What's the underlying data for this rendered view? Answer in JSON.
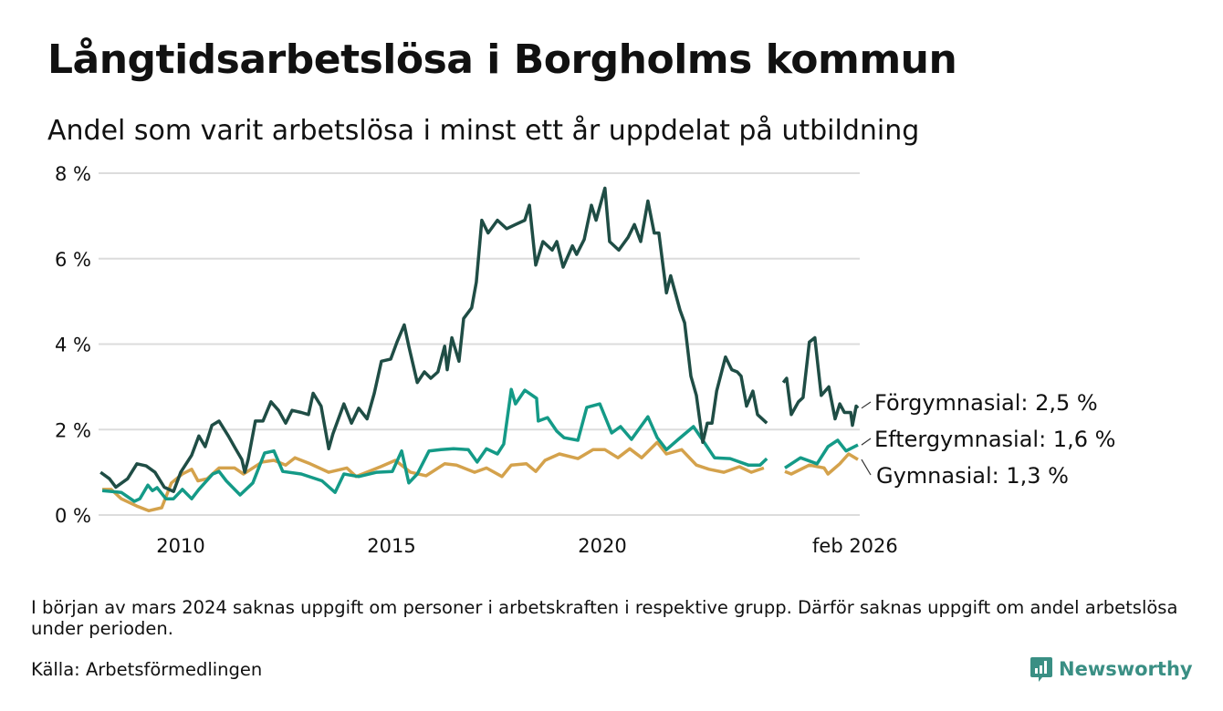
{
  "header": {
    "title": "Långtidsarbetslösa i Borgholms kommun",
    "subtitle": "Andel som varit arbetslösa i minst ett år uppdelat på utbildning"
  },
  "footer": {
    "note": "I början av mars 2024 saknas uppgift om personer i arbetskraften i respektive grupp. Därför saknas uppgift om andel arbetslösa under perioden.",
    "source": "Källa: Arbetsförmedlingen",
    "logo_text": "Newsworthy"
  },
  "chart_data": {
    "type": "line",
    "title": "Långtidsarbetslösa i Borgholms kommun",
    "xlabel": "",
    "ylabel": "",
    "xlim": [
      2008.1,
      2026.1
    ],
    "ylim": [
      0,
      8
    ],
    "grid": true,
    "yticks": [
      {
        "value": 0,
        "label": "0 %"
      },
      {
        "value": 2,
        "label": "2 %"
      },
      {
        "value": 4,
        "label": "4 %"
      },
      {
        "value": 6,
        "label": "6 %"
      },
      {
        "value": 8,
        "label": "8 %"
      }
    ],
    "xticks": [
      {
        "value": 2010,
        "label": "2010"
      },
      {
        "value": 2015,
        "label": "2015"
      },
      {
        "value": 2020,
        "label": "2020"
      },
      {
        "value": 2026.08,
        "label": "feb 2026"
      }
    ],
    "series": [
      {
        "name": "Förgymnasial",
        "end_label": "Förgymnasial: 2,5 %",
        "color": "#1f4d45",
        "points": [
          [
            2008.1,
            1.0
          ],
          [
            2008.31,
            0.85
          ],
          [
            2008.46,
            0.65
          ],
          [
            2008.74,
            0.85
          ],
          [
            2008.96,
            1.2
          ],
          [
            2009.18,
            1.15
          ],
          [
            2009.39,
            1.0
          ],
          [
            2009.61,
            0.65
          ],
          [
            2009.83,
            0.55
          ],
          [
            2010.0,
            1.0
          ],
          [
            2010.26,
            1.4
          ],
          [
            2010.43,
            1.85
          ],
          [
            2010.58,
            1.6
          ],
          [
            2010.74,
            2.1
          ],
          [
            2010.91,
            2.2
          ],
          [
            2011.13,
            1.85
          ],
          [
            2011.3,
            1.55
          ],
          [
            2011.45,
            1.3
          ],
          [
            2011.52,
            1.0
          ],
          [
            2011.6,
            1.3
          ],
          [
            2011.77,
            2.2
          ],
          [
            2011.95,
            2.2
          ],
          [
            2012.14,
            2.65
          ],
          [
            2012.32,
            2.45
          ],
          [
            2012.49,
            2.15
          ],
          [
            2012.64,
            2.45
          ],
          [
            2012.86,
            2.4
          ],
          [
            2013.03,
            2.35
          ],
          [
            2013.14,
            2.85
          ],
          [
            2013.33,
            2.55
          ],
          [
            2013.51,
            1.55
          ],
          [
            2013.61,
            1.9
          ],
          [
            2013.87,
            2.6
          ],
          [
            2014.05,
            2.15
          ],
          [
            2014.22,
            2.5
          ],
          [
            2014.42,
            2.25
          ],
          [
            2014.59,
            2.85
          ],
          [
            2014.76,
            3.6
          ],
          [
            2014.98,
            3.65
          ],
          [
            2015.13,
            4.05
          ],
          [
            2015.3,
            4.45
          ],
          [
            2015.41,
            3.95
          ],
          [
            2015.61,
            3.1
          ],
          [
            2015.78,
            3.35
          ],
          [
            2015.93,
            3.2
          ],
          [
            2016.1,
            3.35
          ],
          [
            2016.26,
            3.95
          ],
          [
            2016.32,
            3.4
          ],
          [
            2016.43,
            4.15
          ],
          [
            2016.6,
            3.6
          ],
          [
            2016.71,
            4.6
          ],
          [
            2016.9,
            4.85
          ],
          [
            2017.01,
            5.45
          ],
          [
            2017.14,
            6.9
          ],
          [
            2017.29,
            6.6
          ],
          [
            2017.51,
            6.9
          ],
          [
            2017.73,
            6.7
          ],
          [
            2017.94,
            6.8
          ],
          [
            2018.16,
            6.9
          ],
          [
            2018.27,
            7.25
          ],
          [
            2018.42,
            5.85
          ],
          [
            2018.59,
            6.4
          ],
          [
            2018.81,
            6.2
          ],
          [
            2018.92,
            6.4
          ],
          [
            2019.07,
            5.8
          ],
          [
            2019.29,
            6.3
          ],
          [
            2019.39,
            6.1
          ],
          [
            2019.57,
            6.45
          ],
          [
            2019.74,
            7.25
          ],
          [
            2019.85,
            6.9
          ],
          [
            2020.06,
            7.65
          ],
          [
            2020.17,
            6.4
          ],
          [
            2020.39,
            6.2
          ],
          [
            2020.61,
            6.5
          ],
          [
            2020.76,
            6.8
          ],
          [
            2020.91,
            6.4
          ],
          [
            2021.08,
            7.35
          ],
          [
            2021.23,
            6.6
          ],
          [
            2021.34,
            6.6
          ],
          [
            2021.52,
            5.2
          ],
          [
            2021.62,
            5.6
          ],
          [
            2021.84,
            4.8
          ],
          [
            2021.95,
            4.5
          ],
          [
            2022.1,
            3.25
          ],
          [
            2022.23,
            2.8
          ],
          [
            2022.38,
            1.7
          ],
          [
            2022.49,
            2.15
          ],
          [
            2022.6,
            2.15
          ],
          [
            2022.71,
            2.9
          ],
          [
            2022.92,
            3.7
          ],
          [
            2023.07,
            3.4
          ],
          [
            2023.2,
            3.35
          ],
          [
            2023.29,
            3.25
          ],
          [
            2023.42,
            2.55
          ],
          [
            2023.57,
            2.9
          ],
          [
            2023.68,
            2.35
          ],
          [
            2023.9,
            2.15
          ],
          null,
          [
            2024.29,
            3.1
          ],
          [
            2024.37,
            3.2
          ],
          [
            2024.48,
            2.35
          ],
          [
            2024.65,
            2.65
          ],
          [
            2024.76,
            2.75
          ],
          [
            2024.91,
            4.05
          ],
          [
            2025.04,
            4.15
          ],
          [
            2025.19,
            2.8
          ],
          [
            2025.37,
            3.0
          ],
          [
            2025.52,
            2.25
          ],
          [
            2025.63,
            2.6
          ],
          [
            2025.74,
            2.4
          ],
          [
            2025.89,
            2.4
          ],
          [
            2025.93,
            2.1
          ],
          [
            2026.02,
            2.55
          ],
          [
            2026.06,
            2.5
          ]
        ]
      },
      {
        "name": "Eftergymnasial",
        "end_label": "Eftergymnasial: 1,6 %",
        "color": "#149a87",
        "points": [
          [
            2008.14,
            0.57
          ],
          [
            2008.59,
            0.53
          ],
          [
            2008.9,
            0.32
          ],
          [
            2009.03,
            0.38
          ],
          [
            2009.22,
            0.7
          ],
          [
            2009.33,
            0.57
          ],
          [
            2009.44,
            0.64
          ],
          [
            2009.65,
            0.38
          ],
          [
            2009.83,
            0.38
          ],
          [
            2010.04,
            0.6
          ],
          [
            2010.26,
            0.38
          ],
          [
            2010.43,
            0.6
          ],
          [
            2010.76,
            0.96
          ],
          [
            2010.91,
            1.02
          ],
          [
            2011.08,
            0.8
          ],
          [
            2011.41,
            0.47
          ],
          [
            2011.71,
            0.75
          ],
          [
            2011.99,
            1.45
          ],
          [
            2012.21,
            1.5
          ],
          [
            2012.42,
            1.02
          ],
          [
            2012.86,
            0.96
          ],
          [
            2013.35,
            0.8
          ],
          [
            2013.66,
            0.53
          ],
          [
            2013.87,
            0.96
          ],
          [
            2014.22,
            0.9
          ],
          [
            2014.65,
            1.0
          ],
          [
            2015.02,
            1.02
          ],
          [
            2015.24,
            1.5
          ],
          [
            2015.41,
            0.75
          ],
          [
            2015.61,
            0.96
          ],
          [
            2015.89,
            1.5
          ],
          [
            2016.17,
            1.53
          ],
          [
            2016.47,
            1.55
          ],
          [
            2016.82,
            1.53
          ],
          [
            2017.03,
            1.24
          ],
          [
            2017.25,
            1.55
          ],
          [
            2017.51,
            1.43
          ],
          [
            2017.66,
            1.66
          ],
          [
            2017.84,
            2.94
          ],
          [
            2017.94,
            2.6
          ],
          [
            2018.16,
            2.92
          ],
          [
            2018.44,
            2.73
          ],
          [
            2018.48,
            2.2
          ],
          [
            2018.7,
            2.28
          ],
          [
            2018.92,
            1.96
          ],
          [
            2019.09,
            1.81
          ],
          [
            2019.42,
            1.75
          ],
          [
            2019.63,
            2.52
          ],
          [
            2019.94,
            2.6
          ],
          [
            2020.22,
            1.92
          ],
          [
            2020.43,
            2.07
          ],
          [
            2020.69,
            1.77
          ],
          [
            2021.08,
            2.3
          ],
          [
            2021.3,
            1.81
          ],
          [
            2021.52,
            1.53
          ],
          [
            2021.8,
            1.77
          ],
          [
            2022.16,
            2.07
          ],
          [
            2022.38,
            1.75
          ],
          [
            2022.66,
            1.34
          ],
          [
            2023.03,
            1.32
          ],
          [
            2023.46,
            1.17
          ],
          [
            2023.74,
            1.17
          ],
          [
            2023.9,
            1.32
          ],
          null,
          [
            2024.33,
            1.1
          ],
          [
            2024.7,
            1.34
          ],
          [
            2025.09,
            1.2
          ],
          [
            2025.35,
            1.6
          ],
          [
            2025.58,
            1.75
          ],
          [
            2025.78,
            1.5
          ],
          [
            2026.06,
            1.64
          ]
        ]
      },
      {
        "name": "Gymnasial",
        "end_label": "Gymnasial: 1,3 %",
        "color": "#d4a24c",
        "points": [
          [
            2008.14,
            0.6
          ],
          [
            2008.35,
            0.6
          ],
          [
            2008.59,
            0.38
          ],
          [
            2008.96,
            0.21
          ],
          [
            2009.24,
            0.1
          ],
          [
            2009.55,
            0.17
          ],
          [
            2009.78,
            0.75
          ],
          [
            2010.04,
            0.96
          ],
          [
            2010.26,
            1.07
          ],
          [
            2010.41,
            0.8
          ],
          [
            2010.63,
            0.85
          ],
          [
            2010.91,
            1.1
          ],
          [
            2011.28,
            1.1
          ],
          [
            2011.49,
            0.96
          ],
          [
            2011.93,
            1.24
          ],
          [
            2012.21,
            1.28
          ],
          [
            2012.49,
            1.17
          ],
          [
            2012.71,
            1.34
          ],
          [
            2013.07,
            1.2
          ],
          [
            2013.51,
            1.0
          ],
          [
            2013.94,
            1.1
          ],
          [
            2014.16,
            0.9
          ],
          [
            2014.74,
            1.13
          ],
          [
            2015.09,
            1.28
          ],
          [
            2015.45,
            1.0
          ],
          [
            2015.82,
            0.92
          ],
          [
            2016.26,
            1.2
          ],
          [
            2016.54,
            1.17
          ],
          [
            2016.97,
            1.0
          ],
          [
            2017.25,
            1.1
          ],
          [
            2017.62,
            0.9
          ],
          [
            2017.84,
            1.17
          ],
          [
            2018.2,
            1.2
          ],
          [
            2018.42,
            1.02
          ],
          [
            2018.64,
            1.28
          ],
          [
            2018.98,
            1.43
          ],
          [
            2019.42,
            1.32
          ],
          [
            2019.78,
            1.53
          ],
          [
            2020.06,
            1.53
          ],
          [
            2020.37,
            1.34
          ],
          [
            2020.65,
            1.55
          ],
          [
            2020.93,
            1.34
          ],
          [
            2021.3,
            1.7
          ],
          [
            2021.52,
            1.43
          ],
          [
            2021.88,
            1.53
          ],
          [
            2022.23,
            1.17
          ],
          [
            2022.53,
            1.07
          ],
          [
            2022.88,
            1.0
          ],
          [
            2023.25,
            1.13
          ],
          [
            2023.53,
            1.0
          ],
          [
            2023.83,
            1.1
          ],
          null,
          [
            2024.33,
            1.02
          ],
          [
            2024.48,
            0.96
          ],
          [
            2024.91,
            1.17
          ],
          [
            2025.26,
            1.1
          ],
          [
            2025.35,
            0.96
          ],
          [
            2025.63,
            1.2
          ],
          [
            2025.84,
            1.43
          ],
          [
            2026.06,
            1.3
          ]
        ]
      }
    ]
  }
}
